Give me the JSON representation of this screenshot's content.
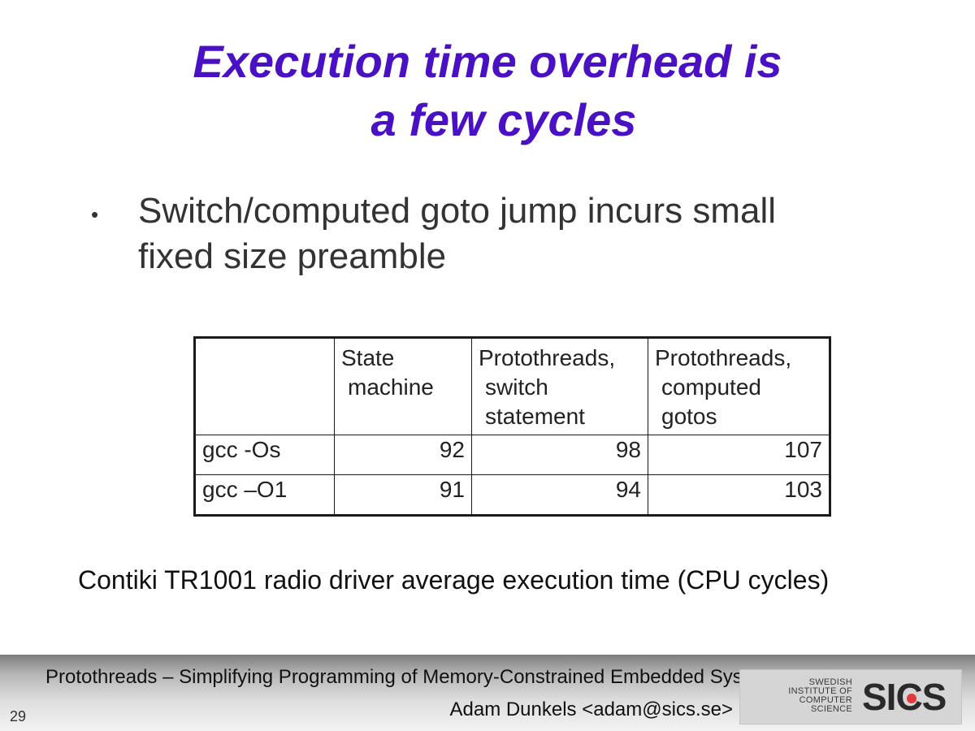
{
  "slide": {
    "title_line1": "Execution time overhead is",
    "title_line2": "a few cycles",
    "bullet_line1": "Switch/computed goto jump incurs small",
    "bullet_line2": "fixed size preamble",
    "bullet_symbol": "•",
    "caption": "Contiki TR1001 radio driver average execution time (CPU cycles)",
    "slide_number": "29"
  },
  "table": {
    "headers": [
      [
        ""
      ],
      [
        "State",
        "machine"
      ],
      [
        "Protothreads,",
        "switch",
        "statement"
      ],
      [
        "Protothreads,",
        "computed",
        "gotos"
      ]
    ],
    "rows": [
      {
        "label": "gcc -Os",
        "values": [
          "92",
          "98",
          "107"
        ]
      },
      {
        "label": "gcc –O1",
        "values": [
          "91",
          "94",
          "103"
        ]
      }
    ]
  },
  "footer": {
    "title": "Protothreads – Simplifying Programming of Memory-Constrained Embedded Systems",
    "author": "Adam Dunkels <adam@sics.se>",
    "logo_text": [
      "SWEDISH",
      "INSTITUTE OF",
      "COMPUTER",
      "SCIENCE"
    ],
    "logo_mark": "SICS",
    "logo_accent_color": "#e23a3a"
  },
  "colors": {
    "title": "#4a10c4",
    "body_text": "#333333"
  }
}
